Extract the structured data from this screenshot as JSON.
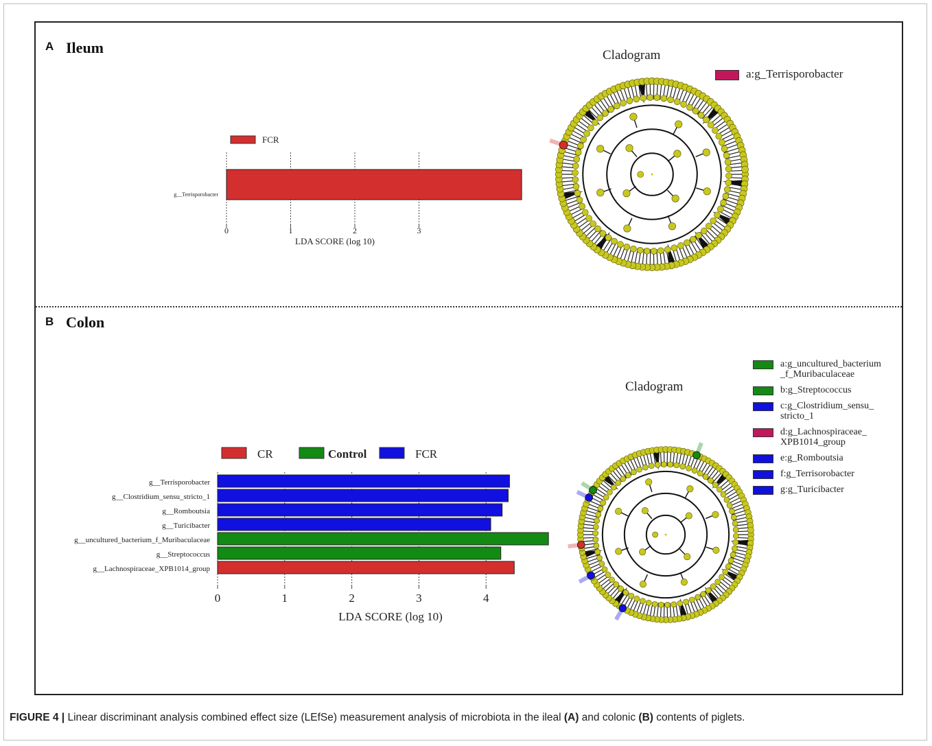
{
  "panels": {
    "a": {
      "letter": "A",
      "title": "Ileum",
      "cladogram_title": "Cladogram",
      "clado_legend": [
        {
          "label": "a:g_Terrisporobacter",
          "color": "#c2185b"
        }
      ]
    },
    "b": {
      "letter": "B",
      "title": "Colon",
      "cladogram_title": "Cladogram",
      "clado_legend": [
        {
          "label": "a:g_uncultured_bacterium\n_f_Muribaculaceae",
          "color": "#138a13"
        },
        {
          "label": "b:g_Streptococcus",
          "color": "#138a13"
        },
        {
          "label": "c:g_Clostridium_sensu_\nstricto_1",
          "color": "#1010e0"
        },
        {
          "label": "d:g_Lachnospiraceae_\nXPB1014_group",
          "color": "#c2185b"
        },
        {
          "label": "e:g_Romboutsia",
          "color": "#1010e0"
        },
        {
          "label": "f:g_Terrisorobacter",
          "color": "#1010e0"
        },
        {
          "label": "g:g_Turicibacter",
          "color": "#1010e0"
        }
      ]
    }
  },
  "caption": {
    "prefix": "FIGURE 4 |",
    "part1": " Linear discriminant analysis combined effect size (LEfSe) measurement analysis of microbiota in the ileal ",
    "a": "(A)",
    "part2": " and colonic ",
    "b": "(B)",
    "part3": " contents of piglets."
  },
  "colors": {
    "CR": "#d32f2f",
    "Control": "#138a13",
    "FCR": "#1010e0"
  },
  "chart_data": [
    {
      "type": "bar",
      "orientation": "horizontal",
      "categories": [
        "g__Terrisporobacter"
      ],
      "series": [
        {
          "name": "FCR",
          "values": [
            4.6
          ],
          "groups": [
            "FCR"
          ]
        }
      ],
      "legend": [
        {
          "name": "FCR",
          "color": "#d32f2f"
        }
      ],
      "xlabel": "LDA SCORE (log 10)",
      "xticks": [
        0,
        1,
        2,
        3
      ],
      "xlim": [
        0,
        4.6
      ],
      "grid": true
    },
    {
      "type": "bar",
      "orientation": "horizontal",
      "categories": [
        "g__Terrisporobacter",
        "g__Clostridium_sensu_stricto_1",
        "g__Romboutsia",
        "g__Turicibacter",
        "g__uncultured_bacterium_f_Muribaculaceae",
        "g__Streptococcus",
        "g__Lachnospiraceae_XPB1014_group"
      ],
      "values": [
        4.35,
        4.33,
        4.24,
        4.07,
        4.93,
        4.22,
        4.42
      ],
      "groups": [
        "FCR",
        "FCR",
        "FCR",
        "FCR",
        "Control",
        "Control",
        "CR"
      ],
      "legend": [
        {
          "name": "CR",
          "color": "#d32f2f"
        },
        {
          "name": "Control",
          "color": "#138a13"
        },
        {
          "name": "FCR",
          "color": "#1010e0"
        }
      ],
      "xlabel": "LDA SCORE (log 10)",
      "xticks": [
        0,
        1,
        2,
        3,
        4
      ],
      "xlim": [
        0,
        4.93
      ],
      "grid": true
    }
  ]
}
